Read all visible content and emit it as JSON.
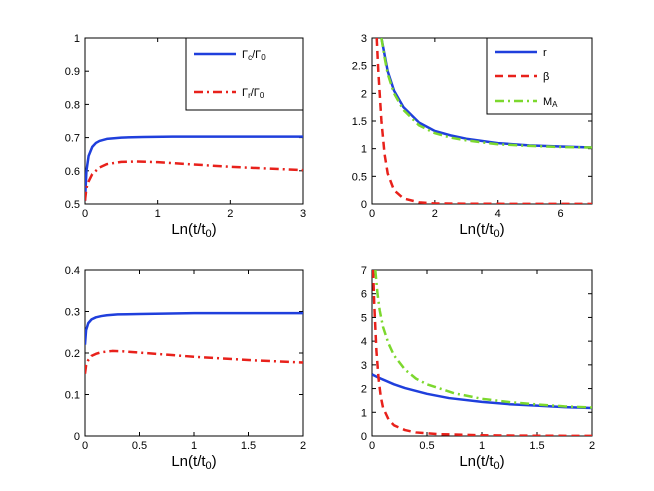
{
  "chart_data": [
    {
      "type": "line",
      "position": "top-left",
      "xlabel": "Ln(t/t_0)",
      "xlim": [
        0,
        3
      ],
      "ylim": [
        0.5,
        1
      ],
      "xticks": [
        0,
        1,
        2,
        3
      ],
      "xticklabels": [
        "0",
        "1",
        "2",
        "3"
      ],
      "yticks": [
        0.5,
        0.6,
        0.7,
        0.8,
        0.9,
        1
      ],
      "yticklabels": [
        "0.5",
        "0.6",
        "0.7",
        "0.8",
        "0.9",
        "1"
      ],
      "legend_loc": "top-right",
      "series": [
        {
          "name": "Γ_c/Γ_0",
          "color": "#1f3fdc",
          "style": "solid",
          "x": [
            0,
            0.02,
            0.05,
            0.1,
            0.15,
            0.2,
            0.3,
            0.5,
            0.8,
            1.2,
            2,
            3
          ],
          "y": [
            0.51,
            0.6,
            0.645,
            0.672,
            0.684,
            0.69,
            0.696,
            0.7,
            0.702,
            0.703,
            0.703,
            0.703
          ]
        },
        {
          "name": "Γ_r/Γ_0",
          "color": "#e8211b",
          "style": "dashdot",
          "x": [
            0,
            0.02,
            0.05,
            0.1,
            0.2,
            0.3,
            0.5,
            0.7,
            1.0,
            1.5,
            2,
            2.5,
            3
          ],
          "y": [
            0.51,
            0.548,
            0.568,
            0.59,
            0.61,
            0.62,
            0.627,
            0.628,
            0.626,
            0.619,
            0.612,
            0.607,
            0.602
          ]
        }
      ]
    },
    {
      "type": "line",
      "position": "top-right",
      "xlabel": "Ln(t/t_0)",
      "xlim": [
        0,
        7
      ],
      "ylim": [
        0,
        3
      ],
      "xticks": [
        0,
        2,
        4,
        6
      ],
      "xticklabels": [
        "0",
        "2",
        "4",
        "6"
      ],
      "yticks": [
        0,
        0.5,
        1,
        1.5,
        2,
        2.5,
        3
      ],
      "yticklabels": [
        "0",
        "0.5",
        "1",
        "1.5",
        "2",
        "2.5",
        "3"
      ],
      "legend_loc": "top-right",
      "series": [
        {
          "name": "r",
          "color": "#1f3fdc",
          "style": "solid",
          "x": [
            0.3,
            0.4,
            0.5,
            0.7,
            1.0,
            1.5,
            2,
            2.5,
            3,
            4,
            5,
            6,
            7
          ],
          "y": [
            3.0,
            2.7,
            2.4,
            2.05,
            1.75,
            1.47,
            1.32,
            1.24,
            1.18,
            1.1,
            1.06,
            1.04,
            1.02
          ]
        },
        {
          "name": "β",
          "color": "#e8211b",
          "style": "dashed",
          "x": [
            0.15,
            0.2,
            0.3,
            0.4,
            0.5,
            0.7,
            1.0,
            1.5,
            2,
            3,
            5,
            7
          ],
          "y": [
            3.0,
            2.4,
            1.5,
            0.9,
            0.55,
            0.25,
            0.1,
            0.03,
            0.01,
            0.005,
            0.002,
            0.001
          ]
        },
        {
          "name": "M_A",
          "color": "#7cd82e",
          "style": "dashdot",
          "x": [
            0.3,
            0.4,
            0.5,
            0.7,
            1.0,
            1.5,
            2,
            2.5,
            3,
            4,
            5,
            6,
            7
          ],
          "y": [
            3.0,
            2.65,
            2.35,
            2.0,
            1.7,
            1.42,
            1.28,
            1.2,
            1.15,
            1.08,
            1.05,
            1.03,
            1.02
          ]
        }
      ]
    },
    {
      "type": "line",
      "position": "bottom-left",
      "xlabel": "Ln(t/t_0)",
      "xlim": [
        0,
        2
      ],
      "ylim": [
        0,
        0.4
      ],
      "xticks": [
        0,
        0.5,
        1,
        1.5,
        2
      ],
      "xticklabels": [
        "0",
        "0.5",
        "1",
        "1.5",
        "2"
      ],
      "yticks": [
        0,
        0.1,
        0.2,
        0.3,
        0.4
      ],
      "yticklabels": [
        "0",
        "0.1",
        "0.2",
        "0.3",
        "0.4"
      ],
      "series": [
        {
          "name": "Γ_c/Γ_0",
          "color": "#1f3fdc",
          "style": "solid",
          "x": [
            0,
            0.01,
            0.03,
            0.06,
            0.1,
            0.15,
            0.2,
            0.3,
            0.5,
            1,
            1.5,
            2
          ],
          "y": [
            0.22,
            0.255,
            0.272,
            0.281,
            0.286,
            0.289,
            0.291,
            0.293,
            0.294,
            0.296,
            0.296,
            0.296
          ]
        },
        {
          "name": "Γ_r/Γ_0",
          "color": "#e8211b",
          "style": "dashdot",
          "x": [
            0,
            0.01,
            0.03,
            0.06,
            0.1,
            0.15,
            0.25,
            0.35,
            0.5,
            0.75,
            1.0,
            1.25,
            1.5,
            1.75,
            2
          ],
          "y": [
            0.15,
            0.17,
            0.183,
            0.193,
            0.198,
            0.202,
            0.205,
            0.204,
            0.201,
            0.196,
            0.191,
            0.187,
            0.183,
            0.18,
            0.177
          ]
        }
      ]
    },
    {
      "type": "line",
      "position": "bottom-right",
      "xlabel": "Ln(t/t_0)",
      "xlim": [
        0,
        2
      ],
      "ylim": [
        0,
        7
      ],
      "xticks": [
        0,
        0.5,
        1,
        1.5,
        2
      ],
      "xticklabels": [
        "0",
        "0.5",
        "1",
        "1.5",
        "2"
      ],
      "yticks": [
        0,
        1,
        2,
        3,
        4,
        5,
        6,
        7
      ],
      "yticklabels": [
        "0",
        "1",
        "2",
        "3",
        "4",
        "5",
        "6",
        "7"
      ],
      "series": [
        {
          "name": "r",
          "color": "#1f3fdc",
          "style": "solid",
          "x": [
            0,
            0.02,
            0.05,
            0.1,
            0.2,
            0.3,
            0.5,
            0.7,
            1.0,
            1.25,
            1.5,
            1.75,
            2
          ],
          "y": [
            2.6,
            2.55,
            2.48,
            2.38,
            2.18,
            2.02,
            1.78,
            1.6,
            1.44,
            1.34,
            1.28,
            1.22,
            1.18
          ]
        },
        {
          "name": "β",
          "color": "#e8211b",
          "style": "dashed",
          "x": [
            0.01,
            0.02,
            0.04,
            0.06,
            0.08,
            0.1,
            0.15,
            0.2,
            0.3,
            0.4,
            0.6,
            1.0,
            1.5,
            2
          ],
          "y": [
            7.0,
            5.6,
            3.6,
            2.4,
            1.65,
            1.2,
            0.7,
            0.45,
            0.25,
            0.15,
            0.08,
            0.03,
            0.01,
            0.005
          ]
        },
        {
          "name": "M_A",
          "color": "#7cd82e",
          "style": "dashdot",
          "x": [
            0.03,
            0.04,
            0.05,
            0.07,
            0.1,
            0.15,
            0.2,
            0.3,
            0.4,
            0.5,
            0.75,
            1.0,
            1.25,
            1.5,
            1.75,
            2
          ],
          "y": [
            7.0,
            6.5,
            6.0,
            5.3,
            4.6,
            3.9,
            3.4,
            2.8,
            2.42,
            2.18,
            1.8,
            1.57,
            1.43,
            1.33,
            1.25,
            1.2
          ]
        }
      ]
    }
  ]
}
